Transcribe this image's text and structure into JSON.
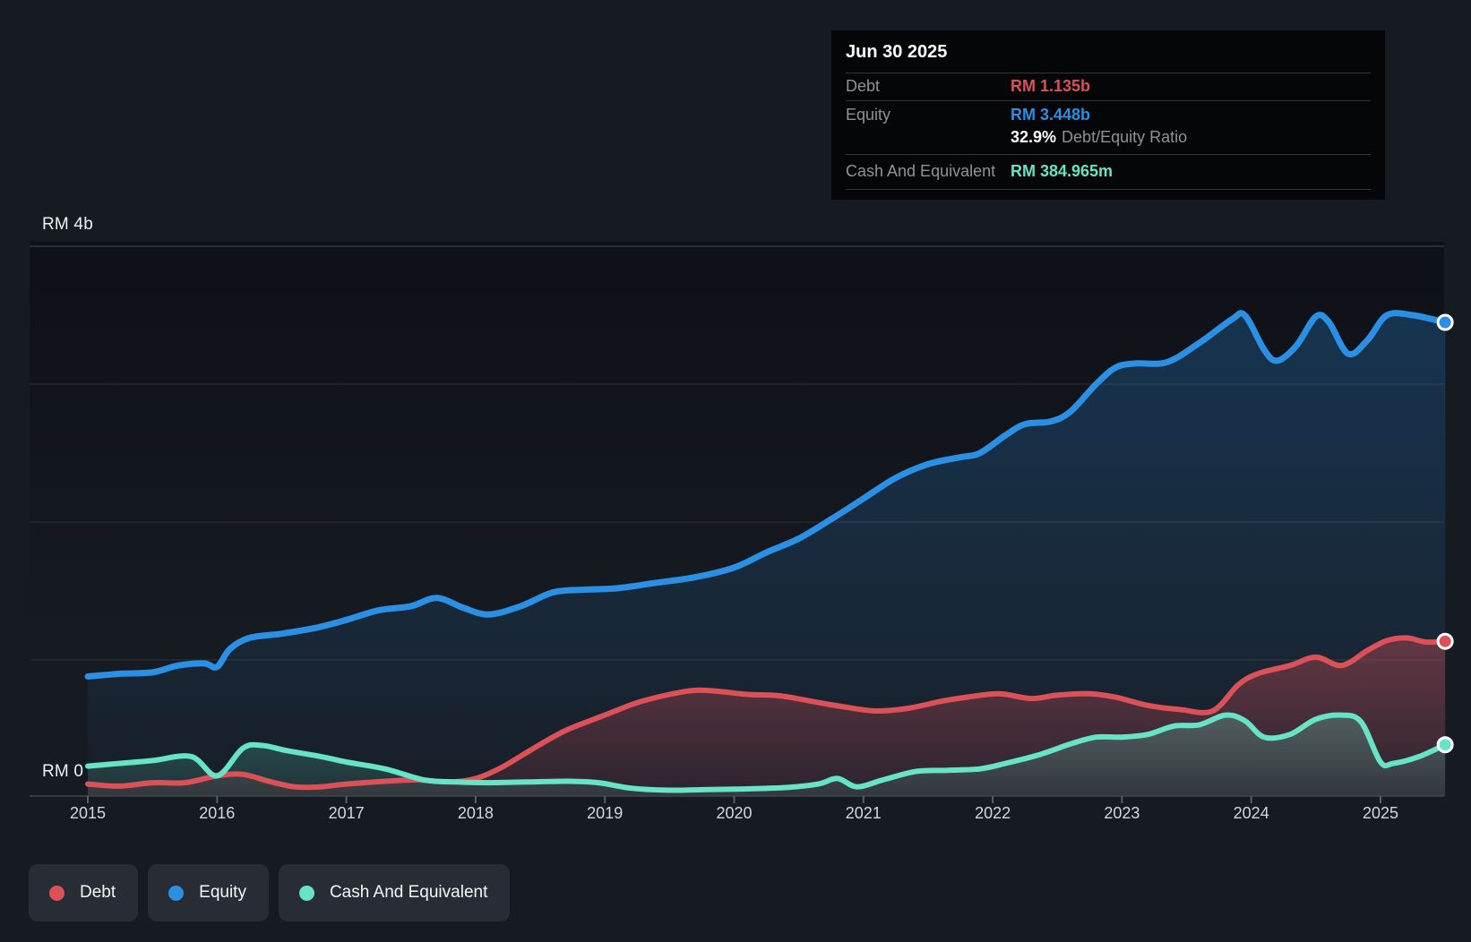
{
  "colors": {
    "debt": "#dc5158",
    "equity": "#2b8fe4",
    "cash": "#67e4c5",
    "background": "#161a21",
    "tooltip_bg": "#050607",
    "grid": "rgba(255,255,255,0.08)",
    "grid_top": "rgba(255,255,255,0.17)",
    "axis_line": "#40464f",
    "tick": "#596067",
    "label_dim": "#8e9399",
    "label_bright": "#eef0f2",
    "x_label": "#d3d6da",
    "legend_bg": "#282d35"
  },
  "tooltip": {
    "date": "Jun 30 2025",
    "debt_label": "Debt",
    "debt_value": "RM 1.135b",
    "equity_label": "Equity",
    "equity_value": "RM 3.448b",
    "ratio_value": "32.9%",
    "ratio_label": "Debt/Equity Ratio",
    "cash_label": "Cash And Equivalent",
    "cash_value": "RM 384.965m"
  },
  "y_axis": {
    "top_label": "RM 4b",
    "zero_label": "RM 0"
  },
  "legend": {
    "debt": "Debt",
    "equity": "Equity",
    "cash": "Cash And Equivalent"
  },
  "chart_data": {
    "type": "area",
    "title": "Debt to Equity History",
    "currency": "RM",
    "units": "billions",
    "x_range": [
      2015,
      2025.5
    ],
    "ylim": [
      0,
      4
    ],
    "y_tick_labels": [
      "RM 0",
      "RM 4b"
    ],
    "x_ticks": [
      "2015",
      "2016",
      "2017",
      "2018",
      "2019",
      "2020",
      "2021",
      "2022",
      "2023",
      "2024",
      "2025"
    ],
    "grid": "horizontal",
    "legend_position": "bottom-left",
    "last_point_date": "Jun 30 2025",
    "series": [
      {
        "name": "Equity",
        "color_key": "equity",
        "end_value_label": "RM 3.448b",
        "points": [
          [
            2015.0,
            0.88
          ],
          [
            2015.25,
            0.9
          ],
          [
            2015.5,
            0.91
          ],
          [
            2015.7,
            0.96
          ],
          [
            2015.9,
            0.975
          ],
          [
            2016.0,
            0.95
          ],
          [
            2016.1,
            1.08
          ],
          [
            2016.25,
            1.16
          ],
          [
            2016.5,
            1.19
          ],
          [
            2016.75,
            1.23
          ],
          [
            2017.0,
            1.29
          ],
          [
            2017.25,
            1.36
          ],
          [
            2017.5,
            1.39
          ],
          [
            2017.7,
            1.45
          ],
          [
            2017.9,
            1.38
          ],
          [
            2018.1,
            1.33
          ],
          [
            2018.35,
            1.39
          ],
          [
            2018.6,
            1.49
          ],
          [
            2018.85,
            1.51
          ],
          [
            2019.1,
            1.52
          ],
          [
            2019.4,
            1.56
          ],
          [
            2019.7,
            1.6
          ],
          [
            2020.0,
            1.67
          ],
          [
            2020.25,
            1.78
          ],
          [
            2020.5,
            1.88
          ],
          [
            2020.75,
            2.02
          ],
          [
            2021.0,
            2.17
          ],
          [
            2021.25,
            2.32
          ],
          [
            2021.5,
            2.42
          ],
          [
            2021.75,
            2.47
          ],
          [
            2021.9,
            2.5
          ],
          [
            2022.1,
            2.63
          ],
          [
            2022.25,
            2.71
          ],
          [
            2022.45,
            2.73
          ],
          [
            2022.6,
            2.8
          ],
          [
            2022.8,
            3.0
          ],
          [
            2022.95,
            3.12
          ],
          [
            2023.1,
            3.15
          ],
          [
            2023.35,
            3.16
          ],
          [
            2023.6,
            3.3
          ],
          [
            2023.85,
            3.47
          ],
          [
            2023.95,
            3.5
          ],
          [
            2024.1,
            3.25
          ],
          [
            2024.2,
            3.17
          ],
          [
            2024.35,
            3.28
          ],
          [
            2024.5,
            3.49
          ],
          [
            2024.6,
            3.45
          ],
          [
            2024.75,
            3.22
          ],
          [
            2024.9,
            3.32
          ],
          [
            2025.05,
            3.5
          ],
          [
            2025.25,
            3.5
          ],
          [
            2025.5,
            3.448
          ]
        ]
      },
      {
        "name": "Debt",
        "color_key": "debt",
        "end_value_label": "RM 1.135b",
        "points": [
          [
            2015.0,
            0.1
          ],
          [
            2015.25,
            0.085
          ],
          [
            2015.5,
            0.11
          ],
          [
            2015.75,
            0.11
          ],
          [
            2016.0,
            0.16
          ],
          [
            2016.2,
            0.17
          ],
          [
            2016.4,
            0.12
          ],
          [
            2016.6,
            0.08
          ],
          [
            2016.8,
            0.08
          ],
          [
            2017.0,
            0.1
          ],
          [
            2017.3,
            0.12
          ],
          [
            2017.55,
            0.13
          ],
          [
            2017.8,
            0.115
          ],
          [
            2018.0,
            0.14
          ],
          [
            2018.2,
            0.22
          ],
          [
            2018.45,
            0.36
          ],
          [
            2018.7,
            0.49
          ],
          [
            2019.0,
            0.6
          ],
          [
            2019.25,
            0.69
          ],
          [
            2019.5,
            0.75
          ],
          [
            2019.7,
            0.78
          ],
          [
            2019.9,
            0.77
          ],
          [
            2020.1,
            0.75
          ],
          [
            2020.35,
            0.74
          ],
          [
            2020.6,
            0.7
          ],
          [
            2020.85,
            0.66
          ],
          [
            2021.1,
            0.63
          ],
          [
            2021.35,
            0.65
          ],
          [
            2021.6,
            0.7
          ],
          [
            2021.8,
            0.73
          ],
          [
            2022.05,
            0.755
          ],
          [
            2022.3,
            0.72
          ],
          [
            2022.5,
            0.745
          ],
          [
            2022.75,
            0.755
          ],
          [
            2022.95,
            0.73
          ],
          [
            2023.2,
            0.67
          ],
          [
            2023.45,
            0.64
          ],
          [
            2023.7,
            0.63
          ],
          [
            2023.9,
            0.82
          ],
          [
            2024.05,
            0.9
          ],
          [
            2024.3,
            0.96
          ],
          [
            2024.5,
            1.02
          ],
          [
            2024.7,
            0.96
          ],
          [
            2024.9,
            1.07
          ],
          [
            2025.05,
            1.14
          ],
          [
            2025.2,
            1.16
          ],
          [
            2025.35,
            1.13
          ],
          [
            2025.5,
            1.135
          ]
        ]
      },
      {
        "name": "Cash And Equivalent",
        "color_key": "cash",
        "end_value_label": "RM 384.965m",
        "points": [
          [
            2015.0,
            0.23
          ],
          [
            2015.25,
            0.25
          ],
          [
            2015.5,
            0.27
          ],
          [
            2015.8,
            0.3
          ],
          [
            2016.0,
            0.16
          ],
          [
            2016.2,
            0.36
          ],
          [
            2016.35,
            0.38
          ],
          [
            2016.55,
            0.34
          ],
          [
            2016.8,
            0.3
          ],
          [
            2017.0,
            0.26
          ],
          [
            2017.3,
            0.21
          ],
          [
            2017.6,
            0.13
          ],
          [
            2017.85,
            0.115
          ],
          [
            2018.1,
            0.11
          ],
          [
            2018.4,
            0.115
          ],
          [
            2018.7,
            0.12
          ],
          [
            2018.95,
            0.11
          ],
          [
            2019.2,
            0.07
          ],
          [
            2019.5,
            0.055
          ],
          [
            2019.8,
            0.06
          ],
          [
            2020.1,
            0.065
          ],
          [
            2020.4,
            0.075
          ],
          [
            2020.65,
            0.1
          ],
          [
            2020.8,
            0.14
          ],
          [
            2020.95,
            0.08
          ],
          [
            2021.15,
            0.13
          ],
          [
            2021.4,
            0.19
          ],
          [
            2021.65,
            0.2
          ],
          [
            2021.9,
            0.21
          ],
          [
            2022.1,
            0.25
          ],
          [
            2022.35,
            0.31
          ],
          [
            2022.6,
            0.39
          ],
          [
            2022.8,
            0.44
          ],
          [
            2023.0,
            0.44
          ],
          [
            2023.2,
            0.46
          ],
          [
            2023.4,
            0.52
          ],
          [
            2023.6,
            0.53
          ],
          [
            2023.8,
            0.6
          ],
          [
            2023.95,
            0.56
          ],
          [
            2024.1,
            0.44
          ],
          [
            2024.3,
            0.46
          ],
          [
            2024.5,
            0.57
          ],
          [
            2024.7,
            0.6
          ],
          [
            2024.85,
            0.55
          ],
          [
            2025.0,
            0.26
          ],
          [
            2025.1,
            0.25
          ],
          [
            2025.3,
            0.3
          ],
          [
            2025.5,
            0.385
          ]
        ]
      }
    ]
  }
}
